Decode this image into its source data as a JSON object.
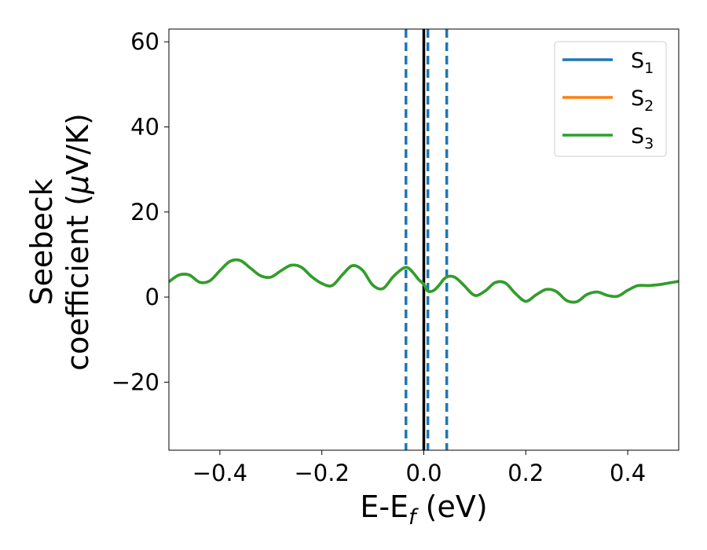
{
  "chart_data": {
    "type": "line",
    "xlabel_main": "E-E",
    "xlabel_sub": "f",
    "xlabel_units": " (eV)",
    "ylabel_line1": "Seebeck",
    "ylabel_line2": "coefficient  (",
    "ylabel_mu": "μ",
    "ylabel_units": "V/K)",
    "xlim": [
      -0.5,
      0.5
    ],
    "ylim": [
      -36,
      63
    ],
    "x_ticks": [
      -0.4,
      -0.2,
      0.0,
      0.2,
      0.4
    ],
    "x_tick_labels": [
      "−0.4",
      "−0.2",
      "0.0",
      "0.2",
      "0.4"
    ],
    "y_ticks": [
      -20,
      0,
      20,
      40,
      60
    ],
    "y_tick_labels": [
      "−20",
      "0",
      "20",
      "40",
      "60"
    ],
    "grid": false,
    "legend_position": "top-right",
    "series": [
      {
        "name": "S",
        "name_sub": "1",
        "color": "#1f77b4",
        "x": [
          -0.5,
          -0.48,
          -0.46,
          -0.44,
          -0.42,
          -0.4,
          -0.38,
          -0.36,
          -0.34,
          -0.32,
          -0.3,
          -0.28,
          -0.26,
          -0.24,
          -0.22,
          -0.2,
          -0.18,
          -0.16,
          -0.14,
          -0.12,
          -0.1,
          -0.08,
          -0.06,
          -0.04,
          -0.03,
          -0.02,
          -0.01,
          0.0,
          0.005,
          0.01,
          0.02,
          0.03,
          0.04,
          0.05,
          0.06,
          0.07,
          0.08,
          0.1,
          0.12,
          0.14,
          0.16,
          0.18,
          0.2,
          0.22,
          0.24,
          0.26,
          0.28,
          0.3,
          0.32,
          0.34,
          0.36,
          0.38,
          0.4,
          0.42,
          0.44,
          0.46,
          0.48,
          0.5
        ],
        "y": [
          3.6,
          5.2,
          5.2,
          3.5,
          3.8,
          6.2,
          8.4,
          8.6,
          6.8,
          5.0,
          4.7,
          6.2,
          7.5,
          7.0,
          4.8,
          3.2,
          2.7,
          5.2,
          7.4,
          6.3,
          2.8,
          2.0,
          4.8,
          6.8,
          6.8,
          5.6,
          4.1,
          3.0,
          1.8,
          1.3,
          1.6,
          2.8,
          4.3,
          4.9,
          4.7,
          3.8,
          2.6,
          0.4,
          1.4,
          3.4,
          3.3,
          0.8,
          -1.0,
          0.5,
          1.8,
          1.3,
          -0.8,
          -1.1,
          0.6,
          1.2,
          0.4,
          0.2,
          1.6,
          2.7,
          2.7,
          2.9,
          3.3,
          3.7
        ]
      },
      {
        "name": "S",
        "name_sub": "2",
        "color": "#ff7f0e",
        "x": [
          -0.5,
          -0.48,
          -0.46,
          -0.44,
          -0.42,
          -0.4,
          -0.38,
          -0.36,
          -0.34,
          -0.32,
          -0.3,
          -0.28,
          -0.26,
          -0.24,
          -0.22,
          -0.2,
          -0.18,
          -0.16,
          -0.14,
          -0.12,
          -0.1,
          -0.08,
          -0.06,
          -0.04,
          -0.03,
          -0.02,
          -0.01,
          0.0,
          0.005,
          0.01,
          0.02,
          0.03,
          0.04,
          0.05,
          0.06,
          0.07,
          0.08,
          0.1,
          0.12,
          0.14,
          0.16,
          0.18,
          0.2,
          0.22,
          0.24,
          0.26,
          0.28,
          0.3,
          0.32,
          0.34,
          0.36,
          0.38,
          0.4,
          0.42,
          0.44,
          0.46,
          0.48,
          0.5
        ],
        "y": [
          3.6,
          5.2,
          5.2,
          3.5,
          3.8,
          6.2,
          8.4,
          8.6,
          6.8,
          5.0,
          4.7,
          6.2,
          7.5,
          7.0,
          4.8,
          3.2,
          2.7,
          5.2,
          7.4,
          6.3,
          2.8,
          2.0,
          4.8,
          6.8,
          6.8,
          5.6,
          4.1,
          3.0,
          1.8,
          1.3,
          1.6,
          2.8,
          4.3,
          4.9,
          4.7,
          3.8,
          2.6,
          0.4,
          1.4,
          3.4,
          3.3,
          0.8,
          -1.0,
          0.5,
          1.8,
          1.3,
          -0.8,
          -1.1,
          0.6,
          1.2,
          0.4,
          0.2,
          1.6,
          2.7,
          2.7,
          2.9,
          3.3,
          3.7
        ]
      },
      {
        "name": "S",
        "name_sub": "3",
        "color": "#2ca02c",
        "x": [
          -0.5,
          -0.48,
          -0.46,
          -0.44,
          -0.42,
          -0.4,
          -0.38,
          -0.36,
          -0.34,
          -0.32,
          -0.3,
          -0.28,
          -0.26,
          -0.24,
          -0.22,
          -0.2,
          -0.18,
          -0.16,
          -0.14,
          -0.12,
          -0.1,
          -0.08,
          -0.06,
          -0.04,
          -0.03,
          -0.02,
          -0.01,
          0.0,
          0.005,
          0.01,
          0.02,
          0.03,
          0.04,
          0.05,
          0.06,
          0.07,
          0.08,
          0.1,
          0.12,
          0.14,
          0.16,
          0.18,
          0.2,
          0.22,
          0.24,
          0.26,
          0.28,
          0.3,
          0.32,
          0.34,
          0.36,
          0.38,
          0.4,
          0.42,
          0.44,
          0.46,
          0.48,
          0.5
        ],
        "y": [
          3.6,
          5.2,
          5.2,
          3.5,
          3.8,
          6.2,
          8.4,
          8.6,
          6.8,
          5.0,
          4.7,
          6.2,
          7.5,
          7.0,
          4.8,
          3.2,
          2.7,
          5.2,
          7.4,
          6.3,
          2.8,
          2.0,
          4.8,
          6.8,
          6.8,
          5.6,
          4.1,
          3.0,
          1.8,
          1.3,
          1.6,
          2.8,
          4.3,
          4.9,
          4.7,
          3.8,
          2.6,
          0.4,
          1.4,
          3.4,
          3.3,
          0.8,
          -1.0,
          0.5,
          1.8,
          1.3,
          -0.8,
          -1.1,
          0.6,
          1.2,
          0.4,
          0.2,
          1.6,
          2.7,
          2.7,
          2.9,
          3.3,
          3.7
        ]
      }
    ],
    "vertical_lines": [
      {
        "x": 0.0,
        "style": "solid",
        "color": "#000000"
      },
      {
        "x": -0.035,
        "style": "dashed",
        "color": "#1f77b4"
      },
      {
        "x": 0.008,
        "style": "dashed",
        "color": "#1f77b4"
      },
      {
        "x": 0.045,
        "style": "dashed",
        "color": "#1f77b4"
      }
    ]
  }
}
